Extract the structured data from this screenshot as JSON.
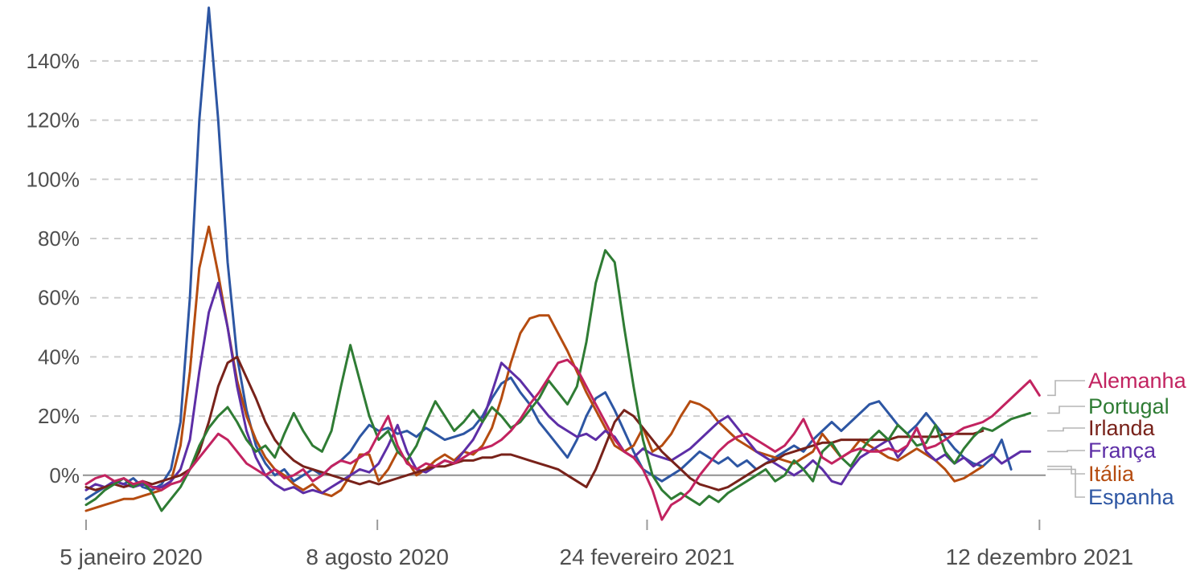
{
  "chart_data": {
    "type": "line",
    "title": "",
    "xlabel": "",
    "ylabel": "",
    "grid": "horizontal-dashed",
    "legend_position": "right-of-line-ends",
    "ylim": [
      -18,
      162
    ],
    "y_ticks": [
      {
        "label": "0%",
        "value": 0
      },
      {
        "label": "20%",
        "value": 20
      },
      {
        "label": "40%",
        "value": 40
      },
      {
        "label": "60%",
        "value": 60
      },
      {
        "label": "80%",
        "value": 80
      },
      {
        "label": "100%",
        "value": 100
      },
      {
        "label": "120%",
        "value": 120
      },
      {
        "label": "140%",
        "value": 140
      }
    ],
    "x_unit": "weeks since 5 janeiro 2020 (weekly data)",
    "x_ticks": [
      {
        "label": "5 janeiro 2020",
        "week": 0
      },
      {
        "label": "8 agosto 2020",
        "week": 30.86
      },
      {
        "label": "24 fevereiro 2021",
        "week": 59.43
      },
      {
        "label": "12 dezembro 2021",
        "week": 101
      }
    ],
    "series": [
      {
        "name": "Alemanha",
        "slug": "alemanha",
        "color": "#c22360",
        "values": [
          -3,
          -1,
          0,
          -2,
          -1,
          -3,
          -2,
          -4,
          -5,
          -3,
          -2,
          2,
          6,
          10,
          14,
          12,
          8,
          4,
          2,
          0,
          2,
          -1,
          0,
          2,
          -2,
          0,
          3,
          5,
          4,
          6,
          8,
          14,
          20,
          10,
          4,
          2,
          4,
          3,
          5,
          4,
          6,
          8,
          9,
          10,
          12,
          15,
          19,
          24,
          28,
          33,
          38,
          39,
          36,
          30,
          24,
          18,
          12,
          8,
          6,
          2,
          -5,
          -15,
          -10,
          -8,
          -5,
          0,
          4,
          8,
          11,
          13,
          14,
          12,
          10,
          8,
          10,
          14,
          19,
          12,
          6,
          4,
          6,
          8,
          9,
          8,
          8,
          9,
          8,
          10,
          16,
          9,
          10,
          12,
          14,
          16,
          17,
          18,
          20,
          23,
          26,
          29,
          32,
          27
        ]
      },
      {
        "name": "Portugal",
        "slug": "portugal",
        "color": "#2f7c34",
        "values": [
          -10,
          -8,
          -5,
          -3,
          -1,
          -4,
          -2,
          -6,
          -12,
          -8,
          -4,
          2,
          10,
          16,
          20,
          23,
          18,
          12,
          8,
          10,
          6,
          14,
          21,
          15,
          10,
          8,
          15,
          30,
          44,
          32,
          20,
          12,
          15,
          8,
          5,
          10,
          18,
          25,
          20,
          15,
          18,
          22,
          18,
          23,
          20,
          16,
          18,
          22,
          26,
          32,
          28,
          24,
          30,
          45,
          65,
          76,
          72,
          50,
          30,
          12,
          0,
          -5,
          -8,
          -6,
          -8,
          -10,
          -7,
          -9,
          -6,
          -4,
          -2,
          0,
          2,
          -2,
          0,
          5,
          2,
          -2,
          8,
          11,
          6,
          3,
          8,
          12,
          15,
          12,
          17,
          14,
          10,
          11,
          17,
          8,
          4,
          9,
          13,
          16,
          15,
          17,
          19,
          20,
          21
        ]
      },
      {
        "name": "Irlanda",
        "slug": "irlanda",
        "color": "#78221a",
        "values": [
          -4,
          -5,
          -4,
          -3,
          -4,
          -3,
          -2,
          -3,
          -2,
          -1,
          0,
          2,
          8,
          18,
          30,
          38,
          40,
          33,
          26,
          18,
          12,
          8,
          5,
          3,
          2,
          1,
          0,
          -1,
          -2,
          -3,
          -2,
          -3,
          -2,
          -1,
          0,
          1,
          2,
          3,
          3,
          4,
          5,
          5,
          6,
          6,
          7,
          7,
          6,
          5,
          4,
          3,
          2,
          0,
          -2,
          -4,
          2,
          10,
          18,
          22,
          20,
          16,
          12,
          8,
          5,
          2,
          -1,
          -3,
          -4,
          -5,
          -4,
          -2,
          0,
          2,
          4,
          5,
          7,
          8,
          9,
          10,
          11,
          11,
          12,
          12,
          12,
          12,
          12,
          12,
          13,
          13,
          13,
          13,
          13,
          14,
          14,
          14,
          14,
          15
        ]
      },
      {
        "name": "França",
        "slug": "franca",
        "color": "#5d2ea6",
        "values": [
          -5,
          -3,
          -4,
          -2,
          -3,
          -4,
          -3,
          -4,
          -4,
          -2,
          2,
          12,
          35,
          55,
          65,
          50,
          30,
          15,
          6,
          0,
          -3,
          -5,
          -4,
          -6,
          -5,
          -6,
          -4,
          -2,
          0,
          2,
          1,
          4,
          10,
          17,
          8,
          2,
          1,
          3,
          5,
          4,
          8,
          12,
          18,
          28,
          38,
          35,
          32,
          28,
          24,
          20,
          17,
          15,
          13,
          14,
          12,
          15,
          13,
          8,
          6,
          9,
          7,
          6,
          5,
          7,
          9,
          12,
          15,
          18,
          20,
          16,
          12,
          8,
          6,
          4,
          2,
          0,
          2,
          5,
          2,
          -2,
          -3,
          2,
          6,
          8,
          10,
          12,
          6,
          10,
          16,
          8,
          5,
          7,
          4,
          6,
          3,
          5,
          7,
          4,
          6,
          8,
          8
        ]
      },
      {
        "name": "Itália",
        "slug": "italia",
        "color": "#b54c10",
        "values": [
          -12,
          -11,
          -10,
          -9,
          -8,
          -8,
          -7,
          -6,
          -5,
          -2,
          10,
          35,
          70,
          84,
          68,
          50,
          32,
          20,
          12,
          6,
          2,
          0,
          -3,
          -5,
          -3,
          -6,
          -7,
          -5,
          0,
          7,
          7,
          -2,
          2,
          8,
          5,
          0,
          2,
          5,
          7,
          5,
          8,
          7,
          10,
          16,
          26,
          38,
          48,
          53,
          54,
          54,
          48,
          42,
          35,
          28,
          22,
          16,
          10,
          8,
          10,
          16,
          8,
          10,
          14,
          20,
          25,
          24,
          22,
          18,
          15,
          12,
          10,
          8,
          7,
          6,
          5,
          4,
          6,
          8,
          14,
          10,
          6,
          8,
          12,
          10,
          8,
          6,
          5,
          7,
          9,
          7,
          5,
          2,
          -2,
          -1,
          1,
          3
        ]
      },
      {
        "name": "Espanha",
        "slug": "espanha",
        "color": "#2d56a3",
        "values": [
          -8,
          -6,
          -4,
          -2,
          -3,
          -1,
          -4,
          -5,
          -3,
          2,
          18,
          60,
          120,
          158,
          120,
          72,
          40,
          22,
          10,
          4,
          0,
          2,
          -2,
          0,
          2,
          0,
          3,
          5,
          8,
          13,
          17,
          15,
          16,
          14,
          15,
          13,
          16,
          14,
          12,
          13,
          14,
          16,
          20,
          26,
          31,
          33,
          28,
          24,
          18,
          14,
          10,
          6,
          12,
          20,
          26,
          28,
          22,
          15,
          8,
          2,
          0,
          -2,
          0,
          2,
          5,
          8,
          6,
          4,
          6,
          3,
          5,
          2,
          4,
          6,
          8,
          10,
          8,
          12,
          15,
          18,
          15,
          18,
          21,
          24,
          25,
          21,
          17,
          14,
          17,
          21,
          17,
          13,
          9,
          6,
          4,
          3,
          6,
          12,
          2
        ]
      }
    ]
  },
  "colors": {
    "background": "#ffffff",
    "gridline": "#cdcdcd",
    "zero_line": "#909090",
    "tick": "#9a9a9a",
    "axis_text": "#4f4f4f",
    "leader_line": "#b5b5b5"
  }
}
